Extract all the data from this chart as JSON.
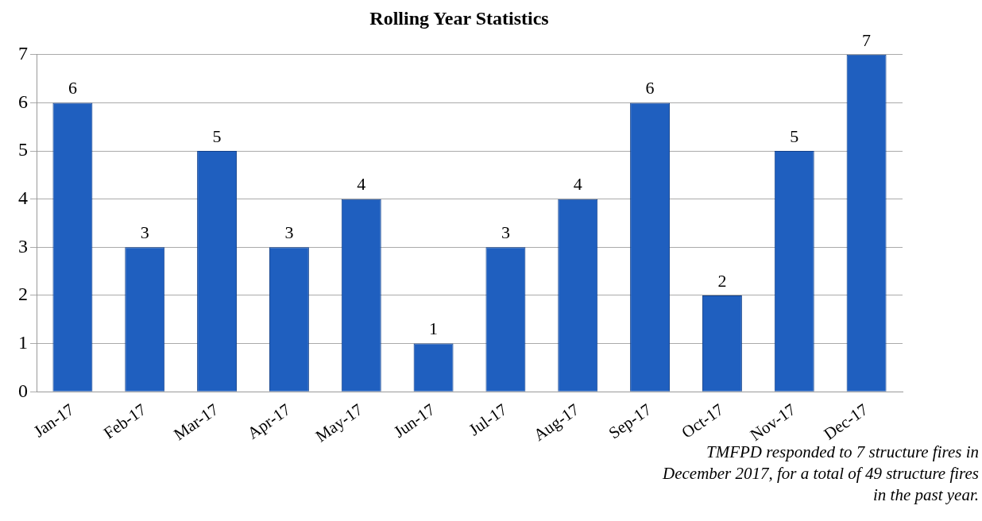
{
  "chart_data": {
    "type": "bar",
    "title": "Rolling Year Statistics",
    "categories": [
      "Jan-17",
      "Feb-17",
      "Mar-17",
      "Apr-17",
      "May-17",
      "Jun-17",
      "Jul-17",
      "Aug-17",
      "Sep-17",
      "Oct-17",
      "Nov-17",
      "Dec-17"
    ],
    "values": [
      6,
      3,
      5,
      3,
      4,
      1,
      3,
      4,
      6,
      2,
      5,
      7
    ],
    "color": "#1f5fbf",
    "ylim": [
      0,
      7
    ],
    "yticks": [
      0,
      1,
      2,
      3,
      4,
      5,
      6,
      7
    ],
    "grid": "y",
    "data_labels": true,
    "annotations": [
      "TMFPD responded to 7 structure fires in December 2017, for a total of 49 structure fires in the past year."
    ]
  }
}
